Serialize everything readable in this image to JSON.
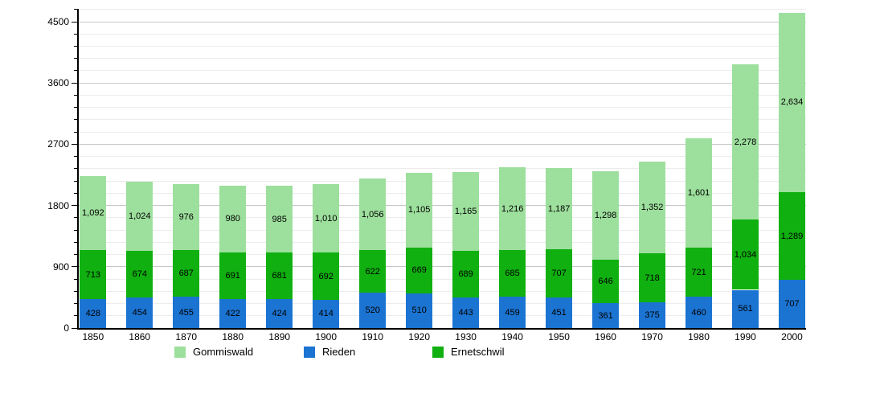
{
  "chart_data": {
    "type": "bar",
    "stacked": true,
    "title": "",
    "xlabel": "",
    "ylabel": "",
    "categories": [
      "1850",
      "1860",
      "1870",
      "1880",
      "1890",
      "1900",
      "1910",
      "1920",
      "1930",
      "1940",
      "1950",
      "1960",
      "1970",
      "1980",
      "1990",
      "2000"
    ],
    "series": [
      {
        "name": "Rieden",
        "color": "#1b74d2",
        "values": [
          428,
          454,
          455,
          422,
          424,
          414,
          520,
          510,
          443,
          459,
          451,
          361,
          375,
          460,
          561,
          707
        ]
      },
      {
        "name": "Ernetschwil",
        "color": "#10b010",
        "values": [
          713,
          674,
          687,
          691,
          681,
          692,
          622,
          669,
          689,
          685,
          707,
          646,
          718,
          721,
          1034,
          1289
        ]
      },
      {
        "name": "Gommiswald",
        "color": "#9ddf9d",
        "values": [
          1092,
          1024,
          976,
          980,
          985,
          1010,
          1056,
          1105,
          1165,
          1216,
          1187,
          1298,
          1352,
          1601,
          2278,
          2634
        ]
      }
    ],
    "stack_order_bottom_to_top": [
      "Rieden",
      "Ernetschwil",
      "Gommiswald"
    ],
    "value_labels": "inside-segments, comma thousands separator",
    "y_axis": {
      "major_ticks": [
        0,
        900,
        1800,
        2700,
        3600,
        4500
      ],
      "minor_step": 180,
      "minor_max": 4680,
      "ylim": [
        0,
        4680
      ]
    },
    "grid": true,
    "legend": {
      "position": "bottom",
      "items": [
        {
          "label": "Gommiswald",
          "color": "#9ddf9d"
        },
        {
          "label": "Rieden",
          "color": "#1b74d2"
        },
        {
          "label": "Ernetschwil",
          "color": "#10b010"
        }
      ]
    },
    "colors": {
      "axis": "#000000",
      "grid_major": "#c8c8c8",
      "grid_minor": "#ececec",
      "background": "#ffffff"
    }
  }
}
